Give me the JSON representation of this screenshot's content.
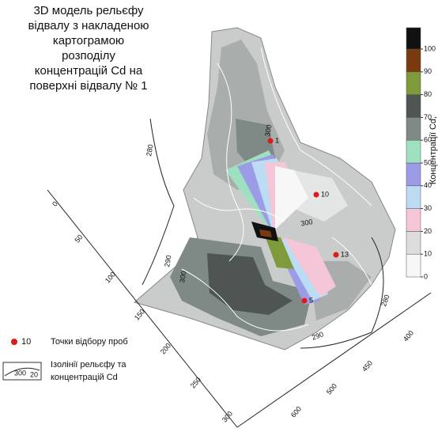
{
  "title_lines": [
    "3D модель рельєфу",
    "відвалу  з накладеною",
    "картограмою",
    "розподілу",
    "концентрацій Cd на",
    "поверхні відвалу № 1"
  ],
  "colorbar": {
    "label": "Концентрації Cd,",
    "ticks": [
      0,
      10,
      20,
      30,
      40,
      50,
      60,
      70,
      80,
      90,
      100
    ],
    "colors": [
      "#f7f7f7",
      "#dcdcdc",
      "#f4c6d8",
      "#bcdcf4",
      "#9c9ce6",
      "#9ee0c0",
      "#7f8a86",
      "#4e5552",
      "#7e9a3a",
      "#7a3a10",
      "#111111"
    ]
  },
  "left_axis_ticks": [
    "0",
    "50",
    "100",
    "150",
    "200",
    "250",
    "300"
  ],
  "right_axis_ticks": [
    "400",
    "450",
    "500",
    "600"
  ],
  "contour_labels": [
    "300",
    "280",
    "290",
    "300",
    "280",
    "290",
    "300"
  ],
  "sample_points": [
    "1",
    "10",
    "13",
    "5"
  ],
  "legend": {
    "marker_label": "10",
    "sample_points": "Точки відбору проб",
    "isoline_sample": [
      "300",
      "20"
    ],
    "isolines_lines": [
      "Ізолінії рельєфу та",
      "концентрацій Cd"
    ]
  }
}
